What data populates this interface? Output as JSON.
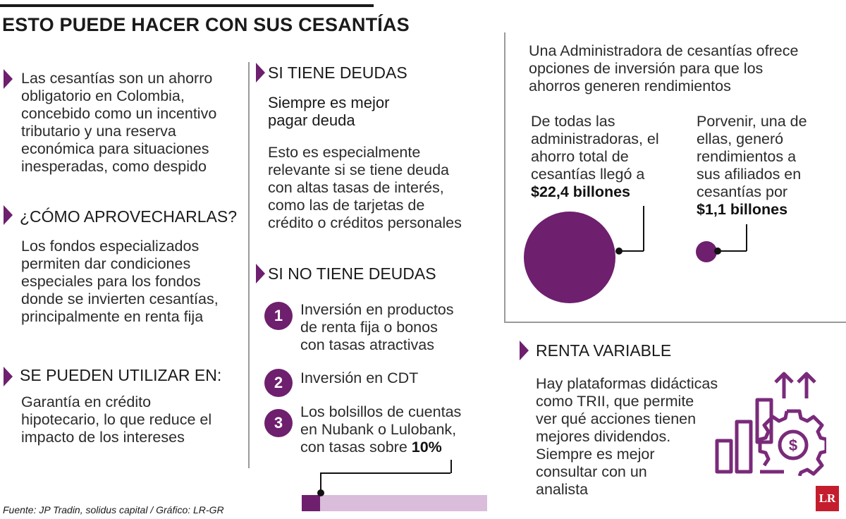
{
  "title": "ESTO PUEDE HACER CON SUS CESANTÍAS",
  "left": {
    "intro": [
      "Las cesantías son un ahorro",
      "obligatorio en Colombia,",
      "concebido como un incentivo",
      "tributario y una reserva",
      "económica para situaciones",
      "inesperadas, como despido"
    ],
    "how_heading": "¿CÓMO APROVECHARLAS?",
    "how_body": [
      "Los fondos especializados",
      "permiten dar condiciones",
      "especiales para los fondos",
      "donde se invierten cesantías,",
      "principalmente en renta fija"
    ],
    "use_heading": "SE PUEDEN UTILIZAR EN:",
    "use_body": [
      "Garantía en crédito",
      "hipotecario, lo que reduce el",
      "impacto de los intereses"
    ]
  },
  "middle": {
    "debt_heading": "SI TIENE DEUDAS",
    "debt_subheading": [
      "Siempre es mejor",
      "pagar deuda"
    ],
    "debt_body": [
      "Esto es especialmente",
      "relevante si se tiene deuda",
      "con altas tasas de interés,",
      "como las de tarjetas de",
      "crédito o créditos personales"
    ],
    "nodebt_heading": "SI NO TIENE DEUDAS",
    "items": [
      {
        "num": "1",
        "lines": [
          "Inversión en productos",
          "de renta fija o bonos",
          "con tasas atractivas"
        ]
      },
      {
        "num": "2",
        "lines": [
          "Inversión en CDT"
        ]
      },
      {
        "num": "3",
        "lines": [
          "Los bolsillos de cuentas",
          "en Nubank o Lulobank,"
        ],
        "last_prefix": "con tasas sobre ",
        "last_bold": "10%"
      }
    ],
    "rate_bar_fraction": 0.1
  },
  "right": {
    "intro": [
      "Una Administradora de cesantías ofrece",
      "opciones de inversión para que los",
      "ahorros generen rendimientos"
    ],
    "total": {
      "lines": [
        "De todas las",
        "administradoras, el",
        "ahorro total de",
        "cesantías llegó a"
      ],
      "value": "$22,4 billones"
    },
    "porvenir": {
      "lines": [
        "Porvenir, una de",
        "ellas, generó",
        "rendimientos a",
        "sus afiliados en",
        "cesantías por"
      ],
      "value": "$1,1 billones"
    },
    "variable_heading": "RENTA VARIABLE",
    "variable_body": [
      "Hay plataformas didácticas",
      "como TRII, que permite",
      "ver qué acciones tienen",
      "mejores dividendos.",
      "Siempre es mejor",
      "consultar con un",
      "analista"
    ]
  },
  "footer": {
    "source": "Fuente: JP Tradin, solidus capital / Gráfico: LR-GR",
    "logo": "LR"
  },
  "colors": {
    "accent": "#6e1f6e",
    "accent_light": "#d9bddb",
    "logo_red": "#c41e2e"
  }
}
